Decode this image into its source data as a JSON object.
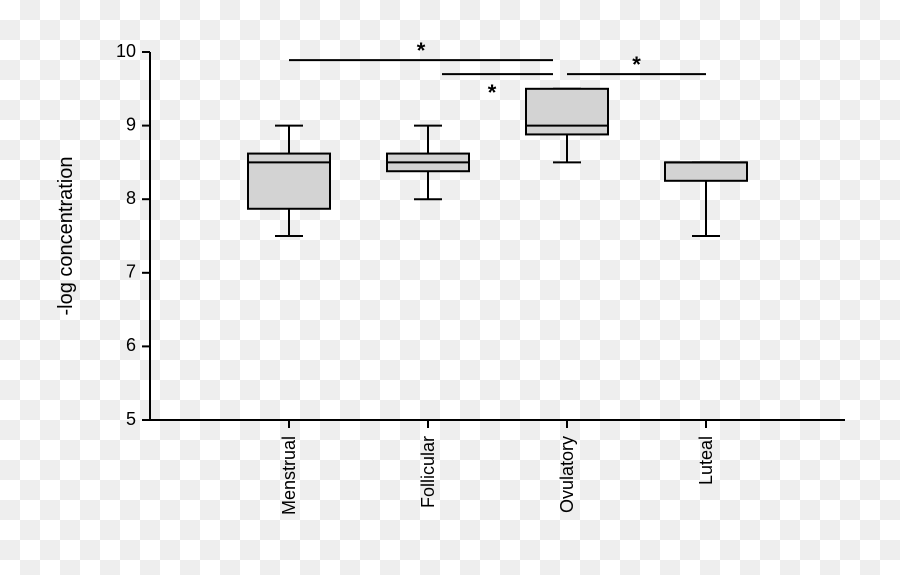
{
  "chart_data": {
    "type": "box",
    "y_label": "-log concentration",
    "categories": [
      "Menstrual",
      "Follicular",
      "Ovulatory",
      "Luteal"
    ],
    "boxes": [
      {
        "min": 7.5,
        "q1": 7.87,
        "median": 8.5,
        "q3": 8.62,
        "max": 9.0
      },
      {
        "min": 8.0,
        "q1": 8.38,
        "median": 8.5,
        "q3": 8.62,
        "max": 9.0
      },
      {
        "min": 8.5,
        "q1": 8.88,
        "median": 9.0,
        "q3": 9.5,
        "max": 9.5
      },
      {
        "min": 7.5,
        "q1": 8.25,
        "median": 8.5,
        "q3": 8.5,
        "max": 8.5
      }
    ],
    "color": "#d3d3d3",
    "ylim": [
      5,
      10
    ],
    "yticks": [
      5,
      6,
      7,
      8,
      9,
      10
    ],
    "brackets": [
      {
        "from": 0,
        "to": 2,
        "y": 9.89,
        "label": "*"
      },
      {
        "from": 1,
        "to": 2,
        "y": 9.7,
        "label": "*"
      },
      {
        "from": 2,
        "to": 3,
        "y": 9.7,
        "label": "*"
      }
    ]
  }
}
